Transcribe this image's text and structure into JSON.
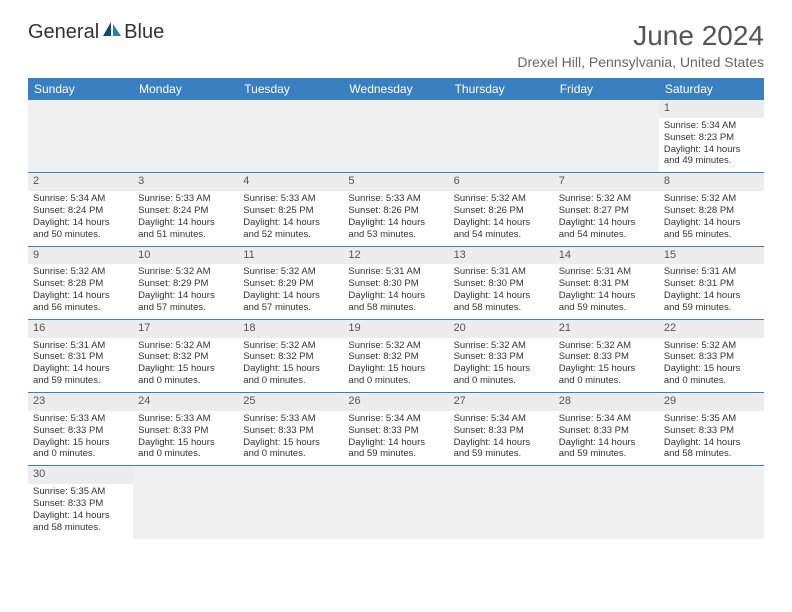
{
  "logo": {
    "text1": "General",
    "text2": "Blue"
  },
  "title": "June 2024",
  "location": "Drexel Hill, Pennsylvania, United States",
  "colors": {
    "header_bg": "#3a7fc0",
    "header_fg": "#ffffff",
    "daynum_bg": "#ececec",
    "row_border": "#3a7fc0",
    "text": "#333333",
    "title_color": "#555555",
    "location_color": "#666666"
  },
  "day_headers": [
    "Sunday",
    "Monday",
    "Tuesday",
    "Wednesday",
    "Thursday",
    "Friday",
    "Saturday"
  ],
  "weeks": [
    [
      null,
      null,
      null,
      null,
      null,
      null,
      {
        "n": "1",
        "sr": "Sunrise: 5:34 AM",
        "ss": "Sunset: 8:23 PM",
        "d1": "Daylight: 14 hours",
        "d2": "and 49 minutes."
      }
    ],
    [
      {
        "n": "2",
        "sr": "Sunrise: 5:34 AM",
        "ss": "Sunset: 8:24 PM",
        "d1": "Daylight: 14 hours",
        "d2": "and 50 minutes."
      },
      {
        "n": "3",
        "sr": "Sunrise: 5:33 AM",
        "ss": "Sunset: 8:24 PM",
        "d1": "Daylight: 14 hours",
        "d2": "and 51 minutes."
      },
      {
        "n": "4",
        "sr": "Sunrise: 5:33 AM",
        "ss": "Sunset: 8:25 PM",
        "d1": "Daylight: 14 hours",
        "d2": "and 52 minutes."
      },
      {
        "n": "5",
        "sr": "Sunrise: 5:33 AM",
        "ss": "Sunset: 8:26 PM",
        "d1": "Daylight: 14 hours",
        "d2": "and 53 minutes."
      },
      {
        "n": "6",
        "sr": "Sunrise: 5:32 AM",
        "ss": "Sunset: 8:26 PM",
        "d1": "Daylight: 14 hours",
        "d2": "and 54 minutes."
      },
      {
        "n": "7",
        "sr": "Sunrise: 5:32 AM",
        "ss": "Sunset: 8:27 PM",
        "d1": "Daylight: 14 hours",
        "d2": "and 54 minutes."
      },
      {
        "n": "8",
        "sr": "Sunrise: 5:32 AM",
        "ss": "Sunset: 8:28 PM",
        "d1": "Daylight: 14 hours",
        "d2": "and 55 minutes."
      }
    ],
    [
      {
        "n": "9",
        "sr": "Sunrise: 5:32 AM",
        "ss": "Sunset: 8:28 PM",
        "d1": "Daylight: 14 hours",
        "d2": "and 56 minutes."
      },
      {
        "n": "10",
        "sr": "Sunrise: 5:32 AM",
        "ss": "Sunset: 8:29 PM",
        "d1": "Daylight: 14 hours",
        "d2": "and 57 minutes."
      },
      {
        "n": "11",
        "sr": "Sunrise: 5:32 AM",
        "ss": "Sunset: 8:29 PM",
        "d1": "Daylight: 14 hours",
        "d2": "and 57 minutes."
      },
      {
        "n": "12",
        "sr": "Sunrise: 5:31 AM",
        "ss": "Sunset: 8:30 PM",
        "d1": "Daylight: 14 hours",
        "d2": "and 58 minutes."
      },
      {
        "n": "13",
        "sr": "Sunrise: 5:31 AM",
        "ss": "Sunset: 8:30 PM",
        "d1": "Daylight: 14 hours",
        "d2": "and 58 minutes."
      },
      {
        "n": "14",
        "sr": "Sunrise: 5:31 AM",
        "ss": "Sunset: 8:31 PM",
        "d1": "Daylight: 14 hours",
        "d2": "and 59 minutes."
      },
      {
        "n": "15",
        "sr": "Sunrise: 5:31 AM",
        "ss": "Sunset: 8:31 PM",
        "d1": "Daylight: 14 hours",
        "d2": "and 59 minutes."
      }
    ],
    [
      {
        "n": "16",
        "sr": "Sunrise: 5:31 AM",
        "ss": "Sunset: 8:31 PM",
        "d1": "Daylight: 14 hours",
        "d2": "and 59 minutes."
      },
      {
        "n": "17",
        "sr": "Sunrise: 5:32 AM",
        "ss": "Sunset: 8:32 PM",
        "d1": "Daylight: 15 hours",
        "d2": "and 0 minutes."
      },
      {
        "n": "18",
        "sr": "Sunrise: 5:32 AM",
        "ss": "Sunset: 8:32 PM",
        "d1": "Daylight: 15 hours",
        "d2": "and 0 minutes."
      },
      {
        "n": "19",
        "sr": "Sunrise: 5:32 AM",
        "ss": "Sunset: 8:32 PM",
        "d1": "Daylight: 15 hours",
        "d2": "and 0 minutes."
      },
      {
        "n": "20",
        "sr": "Sunrise: 5:32 AM",
        "ss": "Sunset: 8:33 PM",
        "d1": "Daylight: 15 hours",
        "d2": "and 0 minutes."
      },
      {
        "n": "21",
        "sr": "Sunrise: 5:32 AM",
        "ss": "Sunset: 8:33 PM",
        "d1": "Daylight: 15 hours",
        "d2": "and 0 minutes."
      },
      {
        "n": "22",
        "sr": "Sunrise: 5:32 AM",
        "ss": "Sunset: 8:33 PM",
        "d1": "Daylight: 15 hours",
        "d2": "and 0 minutes."
      }
    ],
    [
      {
        "n": "23",
        "sr": "Sunrise: 5:33 AM",
        "ss": "Sunset: 8:33 PM",
        "d1": "Daylight: 15 hours",
        "d2": "and 0 minutes."
      },
      {
        "n": "24",
        "sr": "Sunrise: 5:33 AM",
        "ss": "Sunset: 8:33 PM",
        "d1": "Daylight: 15 hours",
        "d2": "and 0 minutes."
      },
      {
        "n": "25",
        "sr": "Sunrise: 5:33 AM",
        "ss": "Sunset: 8:33 PM",
        "d1": "Daylight: 15 hours",
        "d2": "and 0 minutes."
      },
      {
        "n": "26",
        "sr": "Sunrise: 5:34 AM",
        "ss": "Sunset: 8:33 PM",
        "d1": "Daylight: 14 hours",
        "d2": "and 59 minutes."
      },
      {
        "n": "27",
        "sr": "Sunrise: 5:34 AM",
        "ss": "Sunset: 8:33 PM",
        "d1": "Daylight: 14 hours",
        "d2": "and 59 minutes."
      },
      {
        "n": "28",
        "sr": "Sunrise: 5:34 AM",
        "ss": "Sunset: 8:33 PM",
        "d1": "Daylight: 14 hours",
        "d2": "and 59 minutes."
      },
      {
        "n": "29",
        "sr": "Sunrise: 5:35 AM",
        "ss": "Sunset: 8:33 PM",
        "d1": "Daylight: 14 hours",
        "d2": "and 58 minutes."
      }
    ],
    [
      {
        "n": "30",
        "sr": "Sunrise: 5:35 AM",
        "ss": "Sunset: 8:33 PM",
        "d1": "Daylight: 14 hours",
        "d2": "and 58 minutes."
      },
      null,
      null,
      null,
      null,
      null,
      null
    ]
  ]
}
